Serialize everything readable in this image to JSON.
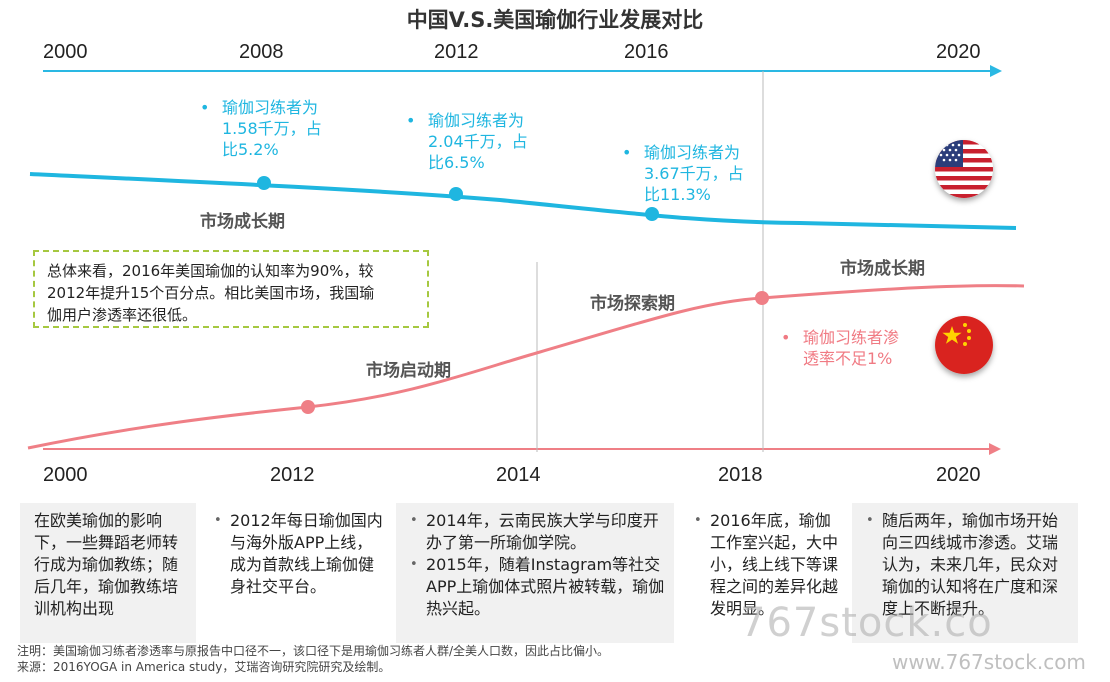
{
  "title": "中国V.S.美国瑜伽行业发展对比",
  "top_axis_years": [
    "2000",
    "2008",
    "2012",
    "2016",
    "2020"
  ],
  "bottom_axis_years": [
    "2000",
    "2012",
    "2014",
    "2018",
    "2020"
  ],
  "us_annotations": [
    {
      "line1": "瑜伽习练者为",
      "line2": "1.58千万，占",
      "line3": "比5.2%"
    },
    {
      "line1": "瑜伽习练者为",
      "line2": "2.04千万，占",
      "line3": "比6.5%"
    },
    {
      "line1": "瑜伽习练者为",
      "line2": "3.67千万，占",
      "line3": "比11.3%"
    }
  ],
  "cn_annotation": {
    "line1": "瑜伽习练者渗",
    "line2": "透率不足1%"
  },
  "phases": {
    "us_growth": "市场成长期",
    "cn_start": "市场启动期",
    "cn_explore": "市场探索期",
    "cn_growth": "市场成长期"
  },
  "summary": {
    "line1": "总体来看，2016年美国瑜伽的认知率为90%，较",
    "line2": "2012年提升15个百分点。相比美国市场，我国瑜",
    "line3": "伽用户渗透率还很低。"
  },
  "flags": {
    "us": "us-flag-icon",
    "cn": "china-flag-icon"
  },
  "boxes": [
    {
      "items": [
        "在欧美瑜伽的影响下，一些舞蹈老师转行成为瑜伽教练；随后几年，瑜伽教练培训机构出现"
      ]
    },
    {
      "items": [
        "2012年每日瑜伽国内与海外版APP上线，成为首款线上瑜伽健身社交平台。"
      ]
    },
    {
      "items": [
        "2014年，云南民族大学与印度开办了第一所瑜伽学院。",
        "2015年，随着Instagram等社交APP上瑜伽体式照片被转载，瑜伽热兴起。"
      ]
    },
    {
      "items": [
        "2016年底，瑜伽工作室兴起，大中小，线上线下等课程之间的差异化越发明显。"
      ]
    },
    {
      "items": [
        "随后两年，瑜伽市场开始向三四线城市渗透。艾瑞认为，未来几年，民众对瑜伽的认知将在广度和深度上不断提升。"
      ]
    }
  ],
  "notes": {
    "note": "注明：美国瑜伽习练者渗透率与原报告中口径不一，该口径下是用瑜伽习练者人群/全美人口数，因此占比偏小。",
    "source": "来源：2016YOGA in America study，艾瑞咨询研究院研究及绘制。"
  },
  "watermark": {
    "large": "767stock.co",
    "small": "www.767stock.com"
  },
  "colors": {
    "us_line": "#1fb6e0",
    "cn_line": "#ef7f86",
    "summary_border": "#a6c840"
  }
}
